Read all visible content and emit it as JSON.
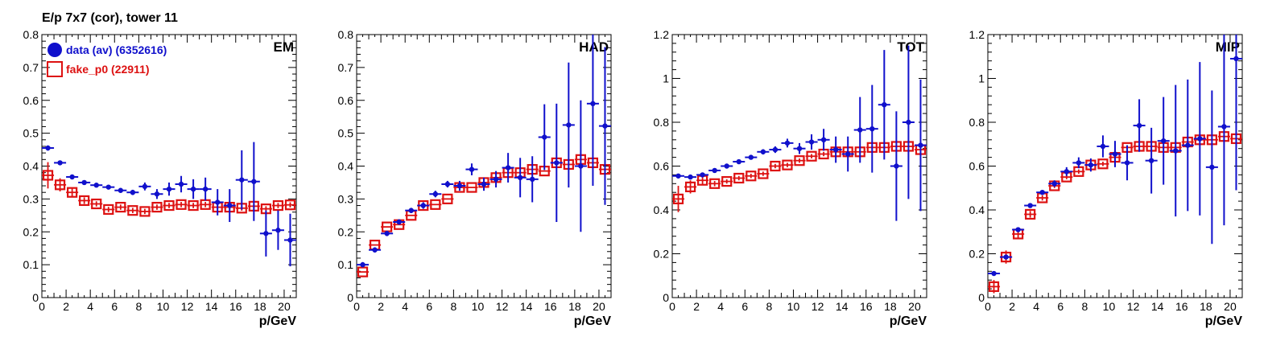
{
  "figure": {
    "title": "E/p 7x7 (cor), tower 11",
    "legend": [
      {
        "label": "data (av) (6352616)",
        "color": "#1010cc",
        "marker": "filled-circle"
      },
      {
        "label": "fake_p0 (22911)",
        "color": "#dd1111",
        "marker": "open-square"
      }
    ]
  },
  "chart_data": [
    {
      "type": "scatter",
      "title": "EM",
      "xlabel": "p/GeV",
      "xlim": [
        0,
        21
      ],
      "ylim": [
        0,
        0.8
      ],
      "xticks": [
        "0",
        "2",
        "4",
        "6",
        "8",
        "10",
        "12",
        "14",
        "16",
        "18",
        "20"
      ],
      "yticks": [
        "0",
        "0.1",
        "0.2",
        "0.3",
        "0.4",
        "0.5",
        "0.6",
        "0.7",
        "0.8"
      ],
      "ytick_values": [
        0,
        0.1,
        0.2,
        0.3,
        0.4,
        0.5,
        0.6,
        0.7,
        0.8
      ],
      "x": [
        0.5,
        1.5,
        2.5,
        3.5,
        4.5,
        5.5,
        6.5,
        7.5,
        8.5,
        9.5,
        10.5,
        11.5,
        12.5,
        13.5,
        14.5,
        15.5,
        16.5,
        17.5,
        18.5,
        19.5,
        20.5
      ],
      "series": [
        {
          "name": "data (av) (6352616)",
          "values": [
            0.455,
            0.41,
            0.367,
            0.35,
            0.342,
            0.336,
            0.326,
            0.32,
            0.338,
            0.315,
            0.33,
            0.345,
            0.33,
            0.33,
            0.29,
            0.28,
            0.358,
            0.353,
            0.195,
            0.205,
            0.175
          ],
          "errors": [
            0.008,
            0.006,
            0.005,
            0.005,
            0.005,
            0.006,
            0.006,
            0.008,
            0.012,
            0.015,
            0.02,
            0.025,
            0.03,
            0.035,
            0.04,
            0.05,
            0.09,
            0.12,
            0.07,
            0.06,
            0.08
          ]
        },
        {
          "name": "fake_p0 (22911)",
          "values": [
            0.372,
            0.343,
            0.32,
            0.295,
            0.285,
            0.268,
            0.275,
            0.265,
            0.262,
            0.275,
            0.28,
            0.283,
            0.28,
            0.283,
            0.275,
            0.275,
            0.272,
            0.278,
            0.27,
            0.28,
            0.282
          ],
          "errors": [
            0.04,
            0.02,
            0.012,
            0.01,
            0.008,
            0.008,
            0.008,
            0.008,
            0.008,
            0.008,
            0.008,
            0.008,
            0.008,
            0.008,
            0.008,
            0.008,
            0.008,
            0.008,
            0.008,
            0.008,
            0.008
          ]
        }
      ]
    },
    {
      "type": "scatter",
      "title": "HAD",
      "xlabel": "p/GeV",
      "xlim": [
        0,
        21
      ],
      "ylim": [
        0,
        0.8
      ],
      "xticks": [
        "0",
        "2",
        "4",
        "6",
        "8",
        "10",
        "12",
        "14",
        "16",
        "18",
        "20"
      ],
      "yticks": [
        "0",
        "0.1",
        "0.2",
        "0.3",
        "0.4",
        "0.5",
        "0.6",
        "0.7",
        "0.8"
      ],
      "ytick_values": [
        0,
        0.1,
        0.2,
        0.3,
        0.4,
        0.5,
        0.6,
        0.7,
        0.8
      ],
      "x": [
        0.5,
        1.5,
        2.5,
        3.5,
        4.5,
        5.5,
        6.5,
        7.5,
        8.5,
        9.5,
        10.5,
        11.5,
        12.5,
        13.5,
        14.5,
        15.5,
        16.5,
        17.5,
        18.5,
        19.5,
        20.5
      ],
      "series": [
        {
          "name": "data (av) (6352616)",
          "values": [
            0.1,
            0.145,
            0.195,
            0.23,
            0.265,
            0.28,
            0.315,
            0.345,
            0.34,
            0.39,
            0.345,
            0.36,
            0.395,
            0.365,
            0.36,
            0.488,
            0.41,
            0.525,
            0.4,
            0.59,
            0.522
          ],
          "errors": [
            0.008,
            0.008,
            0.008,
            0.008,
            0.008,
            0.01,
            0.01,
            0.01,
            0.015,
            0.018,
            0.02,
            0.025,
            0.045,
            0.06,
            0.07,
            0.1,
            0.18,
            0.19,
            0.2,
            0.25,
            0.24
          ]
        },
        {
          "name": "fake_p0 (22911)",
          "values": [
            0.078,
            0.16,
            0.215,
            0.222,
            0.25,
            0.28,
            0.283,
            0.3,
            0.335,
            0.335,
            0.35,
            0.365,
            0.38,
            0.38,
            0.39,
            0.385,
            0.41,
            0.405,
            0.42,
            0.41,
            0.39
          ]
        },
        {
          "name": "",
          "values": [],
          "errors": []
        }
      ]
    },
    {
      "type": "scatter",
      "title": "TOT",
      "xlabel": "p/GeV",
      "xlim": [
        0,
        21
      ],
      "ylim": [
        0,
        1.2
      ],
      "xticks": [
        "0",
        "2",
        "4",
        "6",
        "8",
        "10",
        "12",
        "14",
        "16",
        "18",
        "20"
      ],
      "yticks": [
        "0",
        "0.2",
        "0.4",
        "0.6",
        "0.8",
        "1",
        "1.2"
      ],
      "ytick_values": [
        0,
        0.2,
        0.4,
        0.6,
        0.8,
        1.0,
        1.2
      ],
      "x": [
        0.5,
        1.5,
        2.5,
        3.5,
        4.5,
        5.5,
        6.5,
        7.5,
        8.5,
        9.5,
        10.5,
        11.5,
        12.5,
        13.5,
        14.5,
        15.5,
        16.5,
        17.5,
        18.5,
        19.5,
        20.5
      ],
      "series": [
        {
          "name": "data (av) (6352616)",
          "values": [
            0.555,
            0.55,
            0.56,
            0.58,
            0.6,
            0.62,
            0.64,
            0.665,
            0.675,
            0.705,
            0.68,
            0.71,
            0.72,
            0.675,
            0.655,
            0.765,
            0.77,
            0.88,
            0.6,
            0.8,
            0.695
          ],
          "errors": [
            0.008,
            0.008,
            0.008,
            0.008,
            0.008,
            0.01,
            0.01,
            0.012,
            0.015,
            0.02,
            0.025,
            0.035,
            0.05,
            0.06,
            0.08,
            0.15,
            0.2,
            0.25,
            0.25,
            0.35,
            0.3
          ]
        },
        {
          "name": "fake_p0 (22911)",
          "values": [
            0.45,
            0.505,
            0.535,
            0.52,
            0.53,
            0.545,
            0.555,
            0.565,
            0.6,
            0.605,
            0.625,
            0.645,
            0.655,
            0.665,
            0.665,
            0.665,
            0.685,
            0.685,
            0.69,
            0.69,
            0.675
          ],
          "errors": [
            0.06,
            0.03,
            0.02,
            0.012,
            0.01,
            0.01,
            0.01,
            0.01,
            0.01,
            0.01,
            0.01,
            0.01,
            0.01,
            0.01,
            0.01,
            0.01,
            0.01,
            0.01,
            0.01,
            0.01,
            0.01
          ]
        }
      ]
    },
    {
      "type": "scatter",
      "title": "MIP",
      "xlabel": "p/GeV",
      "xlim": [
        0,
        21
      ],
      "ylim": [
        0,
        1.2
      ],
      "xticks": [
        "0",
        "2",
        "4",
        "6",
        "8",
        "10",
        "12",
        "14",
        "16",
        "18",
        "20"
      ],
      "yticks": [
        "0",
        "0.2",
        "0.4",
        "0.6",
        "0.8",
        "1",
        "1.2"
      ],
      "ytick_values": [
        0,
        0.2,
        0.4,
        0.6,
        0.8,
        1.0,
        1.2
      ],
      "x": [
        0.5,
        1.5,
        2.5,
        3.5,
        4.5,
        5.5,
        6.5,
        7.5,
        8.5,
        9.5,
        10.5,
        11.5,
        12.5,
        13.5,
        14.5,
        15.5,
        16.5,
        17.5,
        18.5,
        19.5,
        20.5
      ],
      "series": [
        {
          "name": "data (av) (6352616)",
          "values": [
            0.11,
            0.185,
            0.31,
            0.42,
            0.48,
            0.52,
            0.575,
            0.615,
            0.605,
            0.69,
            0.655,
            0.615,
            0.785,
            0.625,
            0.715,
            0.67,
            0.695,
            0.725,
            0.595,
            0.78,
            1.09
          ],
          "errors": [
            0.01,
            0.01,
            0.01,
            0.01,
            0.01,
            0.015,
            0.02,
            0.025,
            0.03,
            0.05,
            0.06,
            0.08,
            0.12,
            0.15,
            0.2,
            0.3,
            0.3,
            0.35,
            0.35,
            0.45,
            0.6
          ]
        },
        {
          "name": "fake_p0 (22911)",
          "values": [
            0.05,
            0.185,
            0.29,
            0.38,
            0.455,
            0.51,
            0.55,
            0.575,
            0.605,
            0.61,
            0.64,
            0.685,
            0.69,
            0.69,
            0.685,
            0.685,
            0.71,
            0.72,
            0.72,
            0.735,
            0.725
          ],
          "errors": [
            0.03,
            0.03,
            0.02,
            0.015,
            0.012,
            0.01,
            0.01,
            0.01,
            0.01,
            0.01,
            0.01,
            0.01,
            0.01,
            0.01,
            0.01,
            0.01,
            0.01,
            0.01,
            0.01,
            0.01,
            0.01
          ]
        }
      ]
    }
  ]
}
